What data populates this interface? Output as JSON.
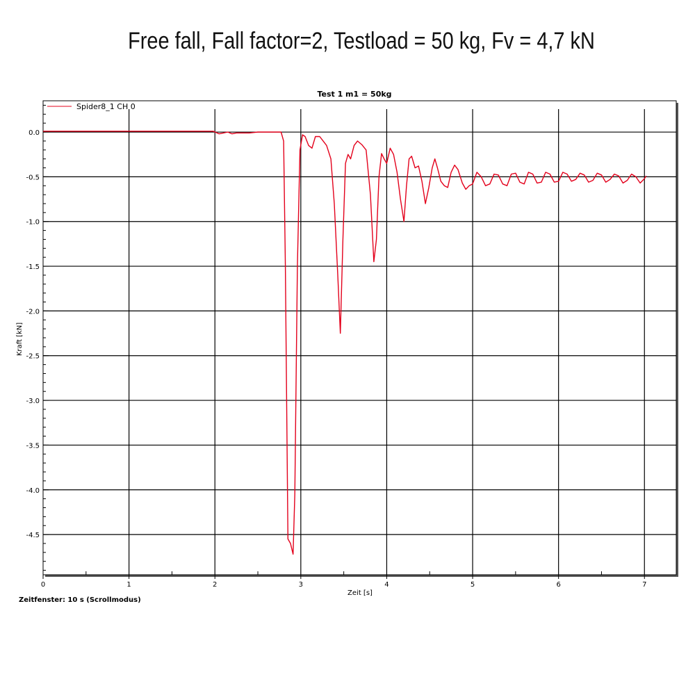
{
  "header": {
    "title": "Free fall, Fall factor=2,  Testload = 50 kg, Fv = 4,7 kN"
  },
  "footer": {
    "note": "Zeitfenster: 10 s (Scrollmodus)"
  },
  "chart_data": {
    "type": "line",
    "title": "Test 1 m1 = 50kg",
    "xlabel": "Zeit [s]",
    "ylabel": "Kraft [kN]",
    "xlim": [
      0,
      7.37
    ],
    "ylim": [
      -4.95,
      0.35
    ],
    "x_ticks": [
      0,
      1,
      2,
      3,
      4,
      5,
      6,
      7
    ],
    "x_tick_labels": [
      "0",
      "1",
      "2",
      "3",
      "4",
      "5",
      "6",
      "7"
    ],
    "y_ticks": [
      0,
      -0.5,
      -1,
      -1.5,
      -2,
      -2.5,
      -3,
      -3.5,
      -4,
      -4.5
    ],
    "y_tick_labels": [
      "0.0",
      "-0.5",
      "-1.0",
      "-1.5",
      "-2.0",
      "-2.5",
      "-3.0",
      "-3.5",
      "-4.0",
      "-4.5"
    ],
    "grid": true,
    "legend_position": "top-left",
    "series": [
      {
        "name": "Spider8_1 CH 0",
        "color": "#e3001b",
        "x": [
          0,
          1.98,
          2.05,
          2.1,
          2.15,
          2.2,
          2.25,
          2.3,
          2.4,
          2.5,
          2.6,
          2.7,
          2.77,
          2.8,
          2.82,
          2.85,
          2.88,
          2.91,
          2.93,
          2.96,
          2.99,
          3.02,
          3.05,
          3.09,
          3.13,
          3.17,
          3.22,
          3.26,
          3.3,
          3.35,
          3.39,
          3.43,
          3.46,
          3.49,
          3.52,
          3.55,
          3.58,
          3.62,
          3.66,
          3.71,
          3.76,
          3.81,
          3.85,
          3.88,
          3.91,
          3.94,
          3.97,
          4.0,
          4.04,
          4.08,
          4.12,
          4.16,
          4.2,
          4.23,
          4.26,
          4.29,
          4.33,
          4.37,
          4.41,
          4.45,
          4.49,
          4.53,
          4.56,
          4.59,
          4.63,
          4.67,
          4.71,
          4.75,
          4.79,
          4.83,
          4.88,
          4.92,
          4.96,
          5.0,
          5.05,
          5.1,
          5.15,
          5.2,
          5.25,
          5.3,
          5.35,
          5.4,
          5.45,
          5.5,
          5.55,
          5.6,
          5.65,
          5.7,
          5.75,
          5.8,
          5.85,
          5.9,
          5.95,
          6.0,
          6.05,
          6.1,
          6.15,
          6.2,
          6.25,
          6.3,
          6.35,
          6.4,
          6.45,
          6.5,
          6.55,
          6.6,
          6.65,
          6.7,
          6.75,
          6.8,
          6.85,
          6.9,
          6.95,
          7.0,
          7.02
        ],
        "values": [
          0.01,
          0.01,
          -0.02,
          -0.01,
          0.0,
          -0.02,
          -0.01,
          -0.01,
          -0.01,
          0.0,
          0.0,
          0.0,
          0.0,
          -0.1,
          -1.5,
          -4.55,
          -4.6,
          -4.72,
          -4.05,
          -1.5,
          -0.2,
          -0.03,
          -0.05,
          -0.15,
          -0.18,
          -0.05,
          -0.05,
          -0.1,
          -0.15,
          -0.3,
          -0.8,
          -1.6,
          -2.25,
          -1.2,
          -0.35,
          -0.25,
          -0.3,
          -0.15,
          -0.1,
          -0.14,
          -0.2,
          -0.7,
          -1.45,
          -1.2,
          -0.5,
          -0.24,
          -0.3,
          -0.35,
          -0.18,
          -0.25,
          -0.45,
          -0.75,
          -1.0,
          -0.6,
          -0.3,
          -0.27,
          -0.4,
          -0.38,
          -0.55,
          -0.8,
          -0.62,
          -0.4,
          -0.3,
          -0.4,
          -0.55,
          -0.6,
          -0.62,
          -0.45,
          -0.37,
          -0.42,
          -0.57,
          -0.64,
          -0.6,
          -0.58,
          -0.45,
          -0.5,
          -0.6,
          -0.58,
          -0.47,
          -0.48,
          -0.58,
          -0.6,
          -0.47,
          -0.46,
          -0.56,
          -0.58,
          -0.45,
          -0.47,
          -0.57,
          -0.56,
          -0.45,
          -0.47,
          -0.56,
          -0.55,
          -0.45,
          -0.47,
          -0.55,
          -0.53,
          -0.46,
          -0.48,
          -0.56,
          -0.54,
          -0.46,
          -0.48,
          -0.56,
          -0.53,
          -0.47,
          -0.49,
          -0.57,
          -0.54,
          -0.47,
          -0.5,
          -0.57,
          -0.52,
          -0.49
        ]
      }
    ]
  }
}
